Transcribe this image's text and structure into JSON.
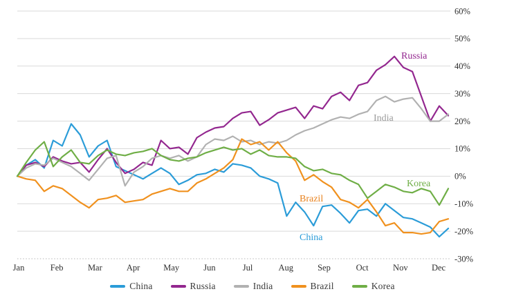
{
  "chart_data": {
    "type": "line",
    "title": "",
    "grid": true,
    "gridline_color": "#d9d9d9",
    "baseline_style": "dotted",
    "background": "#ffffff",
    "x_axis": {
      "tick_labels": [
        "Jan",
        "Feb",
        "Mar",
        "Apr",
        "May",
        "Jun",
        "Jul",
        "Aug",
        "Sep",
        "Oct",
        "Nov",
        "Dec"
      ]
    },
    "y_axis": {
      "side": "right",
      "min": -30,
      "max": 60,
      "step": 10,
      "tick_labels": [
        "60%",
        "50%",
        "40%",
        "30%",
        "20%",
        "10%",
        "0%",
        "-10%",
        "-20%",
        "-30%"
      ]
    },
    "series": [
      {
        "name": "China",
        "color": "#2b9cd8",
        "values": [
          0,
          4,
          6,
          3,
          13,
          11,
          19,
          15,
          7,
          11,
          13,
          3.5,
          2,
          0.5,
          -1,
          1,
          3,
          1,
          -3,
          -1.5,
          0.5,
          1,
          2.5,
          1.5,
          4.5,
          4,
          3,
          0,
          -1,
          -2.5,
          -14.5,
          -9.5,
          -13,
          -18,
          -11,
          -10.5,
          -13.5,
          -17,
          -12.5,
          -12,
          -14.5,
          -10,
          -12.5,
          -15,
          -15.5,
          -17,
          -18.5,
          -22,
          -19
        ]
      },
      {
        "name": "Russia",
        "color": "#93278f",
        "values": [
          0,
          4,
          5,
          3.5,
          7,
          5.5,
          4.5,
          5,
          1.5,
          6,
          10,
          5,
          1,
          2.5,
          5,
          4,
          13,
          10,
          10.5,
          8,
          14,
          16,
          17.5,
          18,
          21,
          23,
          23.5,
          18.5,
          20.5,
          23,
          24,
          25,
          21,
          25.5,
          24.5,
          29,
          30.5,
          27.5,
          33,
          34,
          38.5,
          40.5,
          43.5,
          39.5,
          38,
          29,
          20,
          25.5,
          22
        ]
      },
      {
        "name": "India",
        "color": "#b1b1b1",
        "values": [
          0,
          3,
          4.5,
          4,
          6.5,
          5,
          3.5,
          1,
          -1.5,
          2.5,
          6.5,
          7.5,
          -3.5,
          1.5,
          3.5,
          6.5,
          7.5,
          6.5,
          7.5,
          5.5,
          7,
          11.5,
          13.5,
          13,
          14.5,
          12.5,
          13,
          11.5,
          12.5,
          12,
          13,
          15,
          16.5,
          17.5,
          19,
          20.5,
          21.5,
          21,
          22.5,
          23.5,
          27.5,
          29,
          27,
          28,
          28.5,
          24.5,
          20,
          20,
          22.5
        ]
      },
      {
        "name": "Brazil",
        "color": "#f0911e",
        "values": [
          0,
          -1,
          -1.5,
          -5.5,
          -3.5,
          -4.5,
          -7,
          -9.5,
          -11.5,
          -8.5,
          -8,
          -7,
          -9.5,
          -9,
          -8.5,
          -6.5,
          -5.5,
          -4.5,
          -5.5,
          -5.5,
          -2.5,
          -1,
          1,
          3,
          6,
          13.5,
          11.5,
          12.5,
          9.5,
          12.5,
          8.5,
          5.5,
          -1.5,
          0.5,
          -2,
          -4,
          -8.5,
          -9.5,
          -11.5,
          -8.5,
          -13,
          -18,
          -17,
          -20.5,
          -20.5,
          -21,
          -20.5,
          -16.5,
          -15.5
        ]
      },
      {
        "name": "Korea",
        "color": "#6fae46",
        "values": [
          0,
          5,
          9.5,
          12.5,
          3.5,
          7,
          9.5,
          5,
          4.5,
          7.5,
          9.5,
          8,
          7.5,
          8.5,
          9,
          10,
          7.5,
          6,
          5.5,
          6.5,
          7,
          8.5,
          9.5,
          10.5,
          9.5,
          10,
          8,
          9.5,
          7.5,
          7,
          7,
          6.5,
          3.5,
          2,
          2.5,
          1,
          0.5,
          -1.5,
          -3,
          -8,
          -5.5,
          -3,
          -4,
          -5.5,
          -6,
          -4.5,
          -5.5,
          -10.5,
          -4.5
        ]
      }
    ],
    "annotations": [
      {
        "text": "Russia",
        "color": "#93278f",
        "x": 580,
        "y": 85
      },
      {
        "text": "India",
        "color": "#9b9b9b",
        "x": 540,
        "y": 175
      },
      {
        "text": "Korea",
        "color": "#6fae46",
        "x": 588,
        "y": 270
      },
      {
        "text": "Brazil",
        "color": "#e8821e",
        "x": 433,
        "y": 292
      },
      {
        "text": "China",
        "color": "#2b9cd8",
        "x": 433,
        "y": 348
      }
    ],
    "legend": {
      "position": "bottom",
      "items": [
        "China",
        "Russia",
        "India",
        "Brazil",
        "Korea"
      ]
    }
  }
}
